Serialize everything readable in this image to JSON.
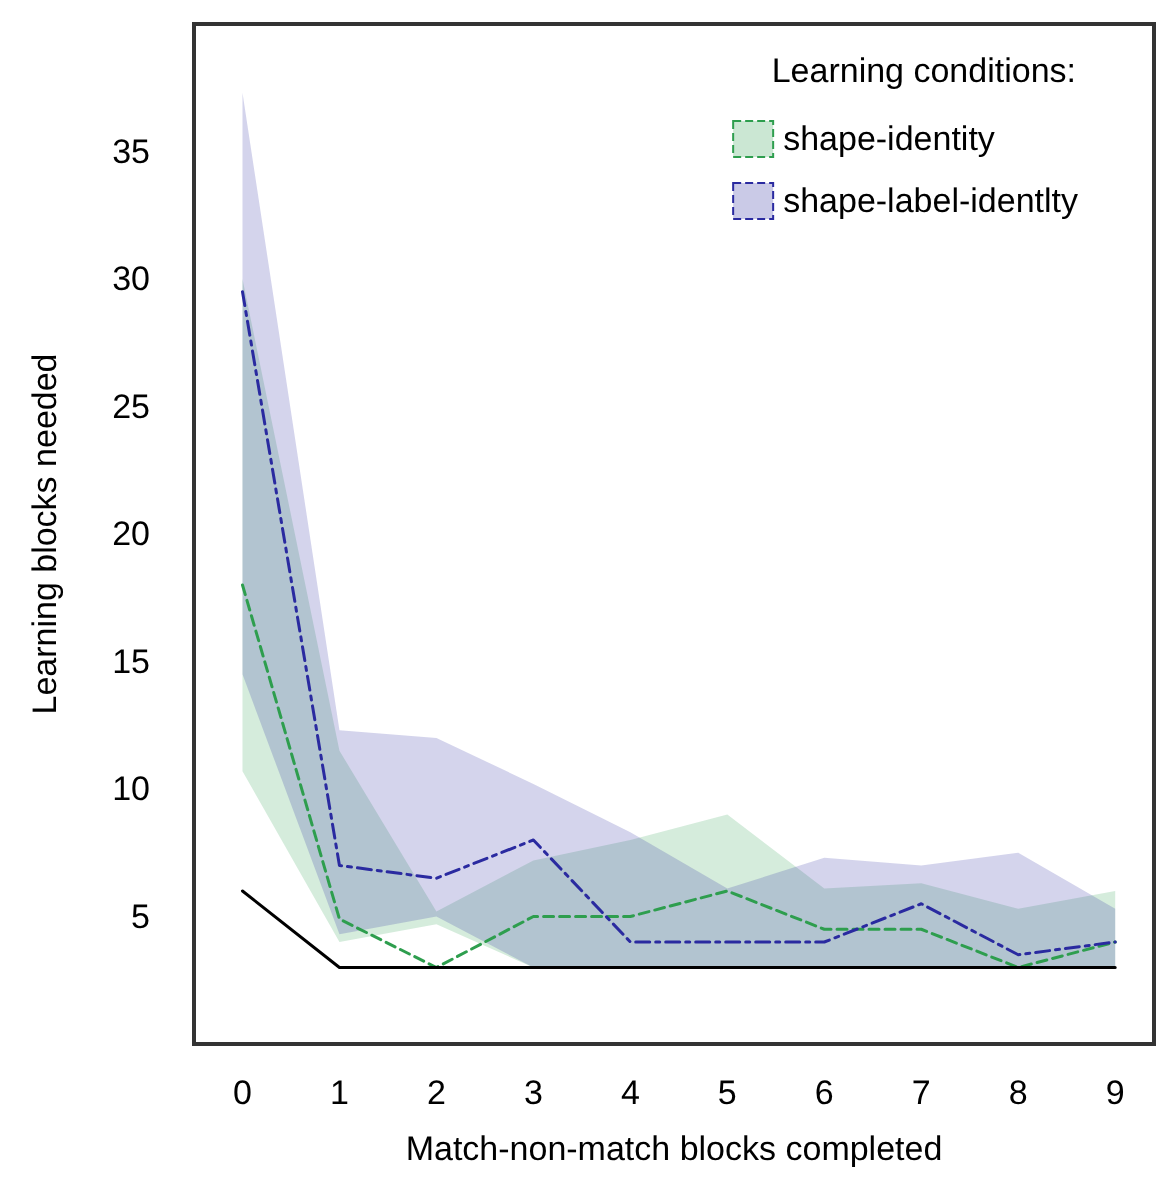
{
  "chart_data": {
    "type": "line",
    "xlabel": "Match-non-match blocks completed",
    "ylabel": "Learning blocks needed",
    "legend_title": "Learning conditions:",
    "x": [
      0,
      1,
      2,
      3,
      4,
      5,
      6,
      7,
      8,
      9
    ],
    "series": [
      {
        "name": "shape-identity",
        "color": "#2e9e4e",
        "line_style": "dashed",
        "values": [
          18,
          4.9,
          3,
          5,
          5,
          6,
          4.5,
          4.5,
          3,
          4
        ],
        "lower": [
          10.7,
          4,
          4.7,
          3,
          3,
          3,
          3,
          3,
          3,
          3
        ],
        "upper": [
          30,
          11.5,
          5.2,
          7.2,
          8,
          9,
          6.1,
          6.3,
          5.3,
          6
        ]
      },
      {
        "name": "shape-label-identlty",
        "color": "#2a2aa0",
        "line_style": "dashdot",
        "values": [
          29.5,
          7,
          6.5,
          8,
          4,
          4,
          4,
          5.5,
          3.5,
          4
        ],
        "lower": [
          14.5,
          4.3,
          5,
          3,
          3,
          3,
          3,
          3,
          3,
          3
        ],
        "upper": [
          37.3,
          12.3,
          12,
          10.2,
          8.3,
          6.1,
          7.3,
          7,
          7.5,
          5.3
        ]
      },
      {
        "color": "#000000",
        "line_style": "solid",
        "values": [
          6,
          3,
          3,
          3,
          3,
          3,
          3,
          3,
          3,
          3
        ]
      }
    ],
    "xlim": [
      -0.5,
      9.4
    ],
    "xticks": [
      0,
      1,
      2,
      3,
      4,
      5,
      6,
      7,
      8,
      9
    ],
    "ylim": [
      0,
      40
    ],
    "yticks": [
      5,
      10,
      15,
      20,
      25,
      30,
      35
    ],
    "grid": false,
    "legend": "top right",
    "marker": "none"
  }
}
